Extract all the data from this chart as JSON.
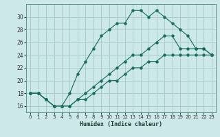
{
  "xlabel": "Humidex (Indice chaleur)",
  "bg_color": "#cce8e8",
  "grid_color": "#aacccc",
  "line_color": "#1a6e60",
  "xlim": [
    -0.5,
    23.5
  ],
  "ylim": [
    15.0,
    32.0
  ],
  "xticks": [
    0,
    1,
    2,
    3,
    4,
    5,
    6,
    7,
    8,
    9,
    10,
    11,
    12,
    13,
    14,
    15,
    16,
    17,
    18,
    19,
    20,
    21,
    22,
    23
  ],
  "yticks": [
    16,
    18,
    20,
    22,
    24,
    26,
    28,
    30
  ],
  "line1_x": [
    0,
    1,
    2,
    3,
    4,
    5,
    6,
    7,
    8,
    9,
    10,
    11,
    12,
    13,
    14,
    15,
    16,
    17,
    18,
    19,
    20,
    21,
    22,
    23
  ],
  "line1_y": [
    18,
    18,
    17,
    16,
    16,
    18,
    21,
    23,
    25,
    27,
    28,
    29,
    29,
    31,
    31,
    30,
    31,
    30,
    29,
    28,
    27,
    25,
    25,
    24
  ],
  "line2_x": [
    0,
    1,
    2,
    3,
    4,
    5,
    6,
    7,
    8,
    9,
    10,
    11,
    12,
    13,
    14,
    15,
    16,
    17,
    18,
    19,
    20,
    21,
    22,
    23
  ],
  "line2_y": [
    18,
    18,
    17,
    16,
    16,
    16,
    17,
    18,
    19,
    20,
    21,
    22,
    23,
    24,
    24,
    25,
    26,
    27,
    27,
    25,
    25,
    25,
    25,
    24
  ],
  "line3_x": [
    0,
    1,
    2,
    3,
    4,
    5,
    6,
    7,
    8,
    9,
    10,
    11,
    12,
    13,
    14,
    15,
    16,
    17,
    18,
    19,
    20,
    21,
    22,
    23
  ],
  "line3_y": [
    18,
    18,
    17,
    16,
    16,
    16,
    17,
    17,
    18,
    19,
    20,
    20,
    21,
    22,
    22,
    23,
    23,
    24,
    24,
    24,
    24,
    24,
    24,
    24
  ]
}
